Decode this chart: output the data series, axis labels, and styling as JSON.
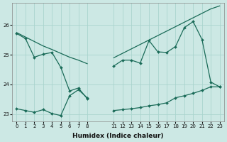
{
  "xlabel": "Humidex (Indice chaleur)",
  "bg_color": "#cce8e4",
  "grid_color": "#aad4ce",
  "line_color": "#1a6b58",
  "x_ticks": [
    0,
    1,
    2,
    3,
    4,
    5,
    6,
    7,
    8,
    11,
    12,
    13,
    14,
    15,
    16,
    17,
    18,
    19,
    20,
    21,
    22,
    23
  ],
  "seg1_x": [
    0,
    1,
    2,
    3,
    4,
    5,
    6,
    7,
    8
  ],
  "seg2_x": [
    11,
    12,
    13,
    14,
    15,
    16,
    17,
    18,
    19,
    20,
    21,
    22,
    23
  ],
  "line_upper_seg1_y": [
    25.75,
    25.6,
    25.45,
    25.3,
    25.18,
    25.05,
    24.92,
    24.82,
    24.7
  ],
  "line_upper_seg2_y": [
    24.9,
    25.05,
    25.2,
    25.35,
    25.5,
    25.65,
    25.8,
    25.95,
    26.1,
    26.25,
    26.4,
    26.55,
    26.65
  ],
  "line_mid_seg1_y": [
    25.72,
    25.55,
    24.92,
    25.02,
    25.08,
    24.58,
    23.78,
    23.88,
    23.52
  ],
  "line_mid_seg2_y": [
    24.62,
    24.82,
    24.82,
    24.72,
    25.48,
    25.1,
    25.08,
    25.28,
    25.92,
    26.12,
    25.52,
    24.08,
    23.92
  ],
  "line_low_seg1_y": [
    23.18,
    23.12,
    23.06,
    23.15,
    23.02,
    22.95,
    23.62,
    23.82,
    23.55
  ],
  "line_low_seg2_y": [
    23.12,
    23.15,
    23.18,
    23.22,
    23.28,
    23.32,
    23.38,
    23.55,
    23.62,
    23.7,
    23.8,
    23.92,
    23.92
  ],
  "ylim": [
    22.75,
    26.75
  ],
  "yticks": [
    23,
    24,
    25,
    26
  ],
  "xlim": [
    -0.5,
    23.5
  ]
}
